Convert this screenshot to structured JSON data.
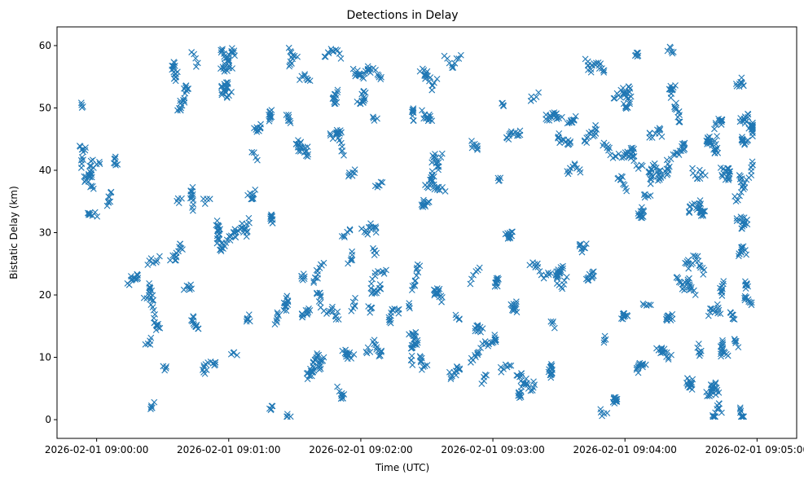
{
  "chart_data": {
    "type": "scatter",
    "title": "Detections in Delay",
    "xlabel": "Time (UTC)",
    "ylabel": "Bistatic Delay (km)",
    "marker": "x",
    "color": "#1f77b4",
    "grid": false,
    "legend": false,
    "xlim": [
      "2026-02-01 08:59:42",
      "2026-02-01 09:05:18"
    ],
    "ylim": [
      -3,
      63
    ],
    "x_range": [
      "2026-02-01 08:59:52",
      "2026-02-01 09:04:58"
    ],
    "y_range": [
      0.5,
      59.8
    ],
    "approx_point_count": 2000,
    "xticks": [
      "2026-02-01 09:00:00",
      "2026-02-01 09:01:00",
      "2026-02-01 09:02:00",
      "2026-02-01 09:03:00",
      "2026-02-01 09:04:00",
      "2026-02-01 09:05:00"
    ],
    "yticks": [
      "0",
      "10",
      "20",
      "30",
      "40",
      "50",
      "60"
    ]
  }
}
